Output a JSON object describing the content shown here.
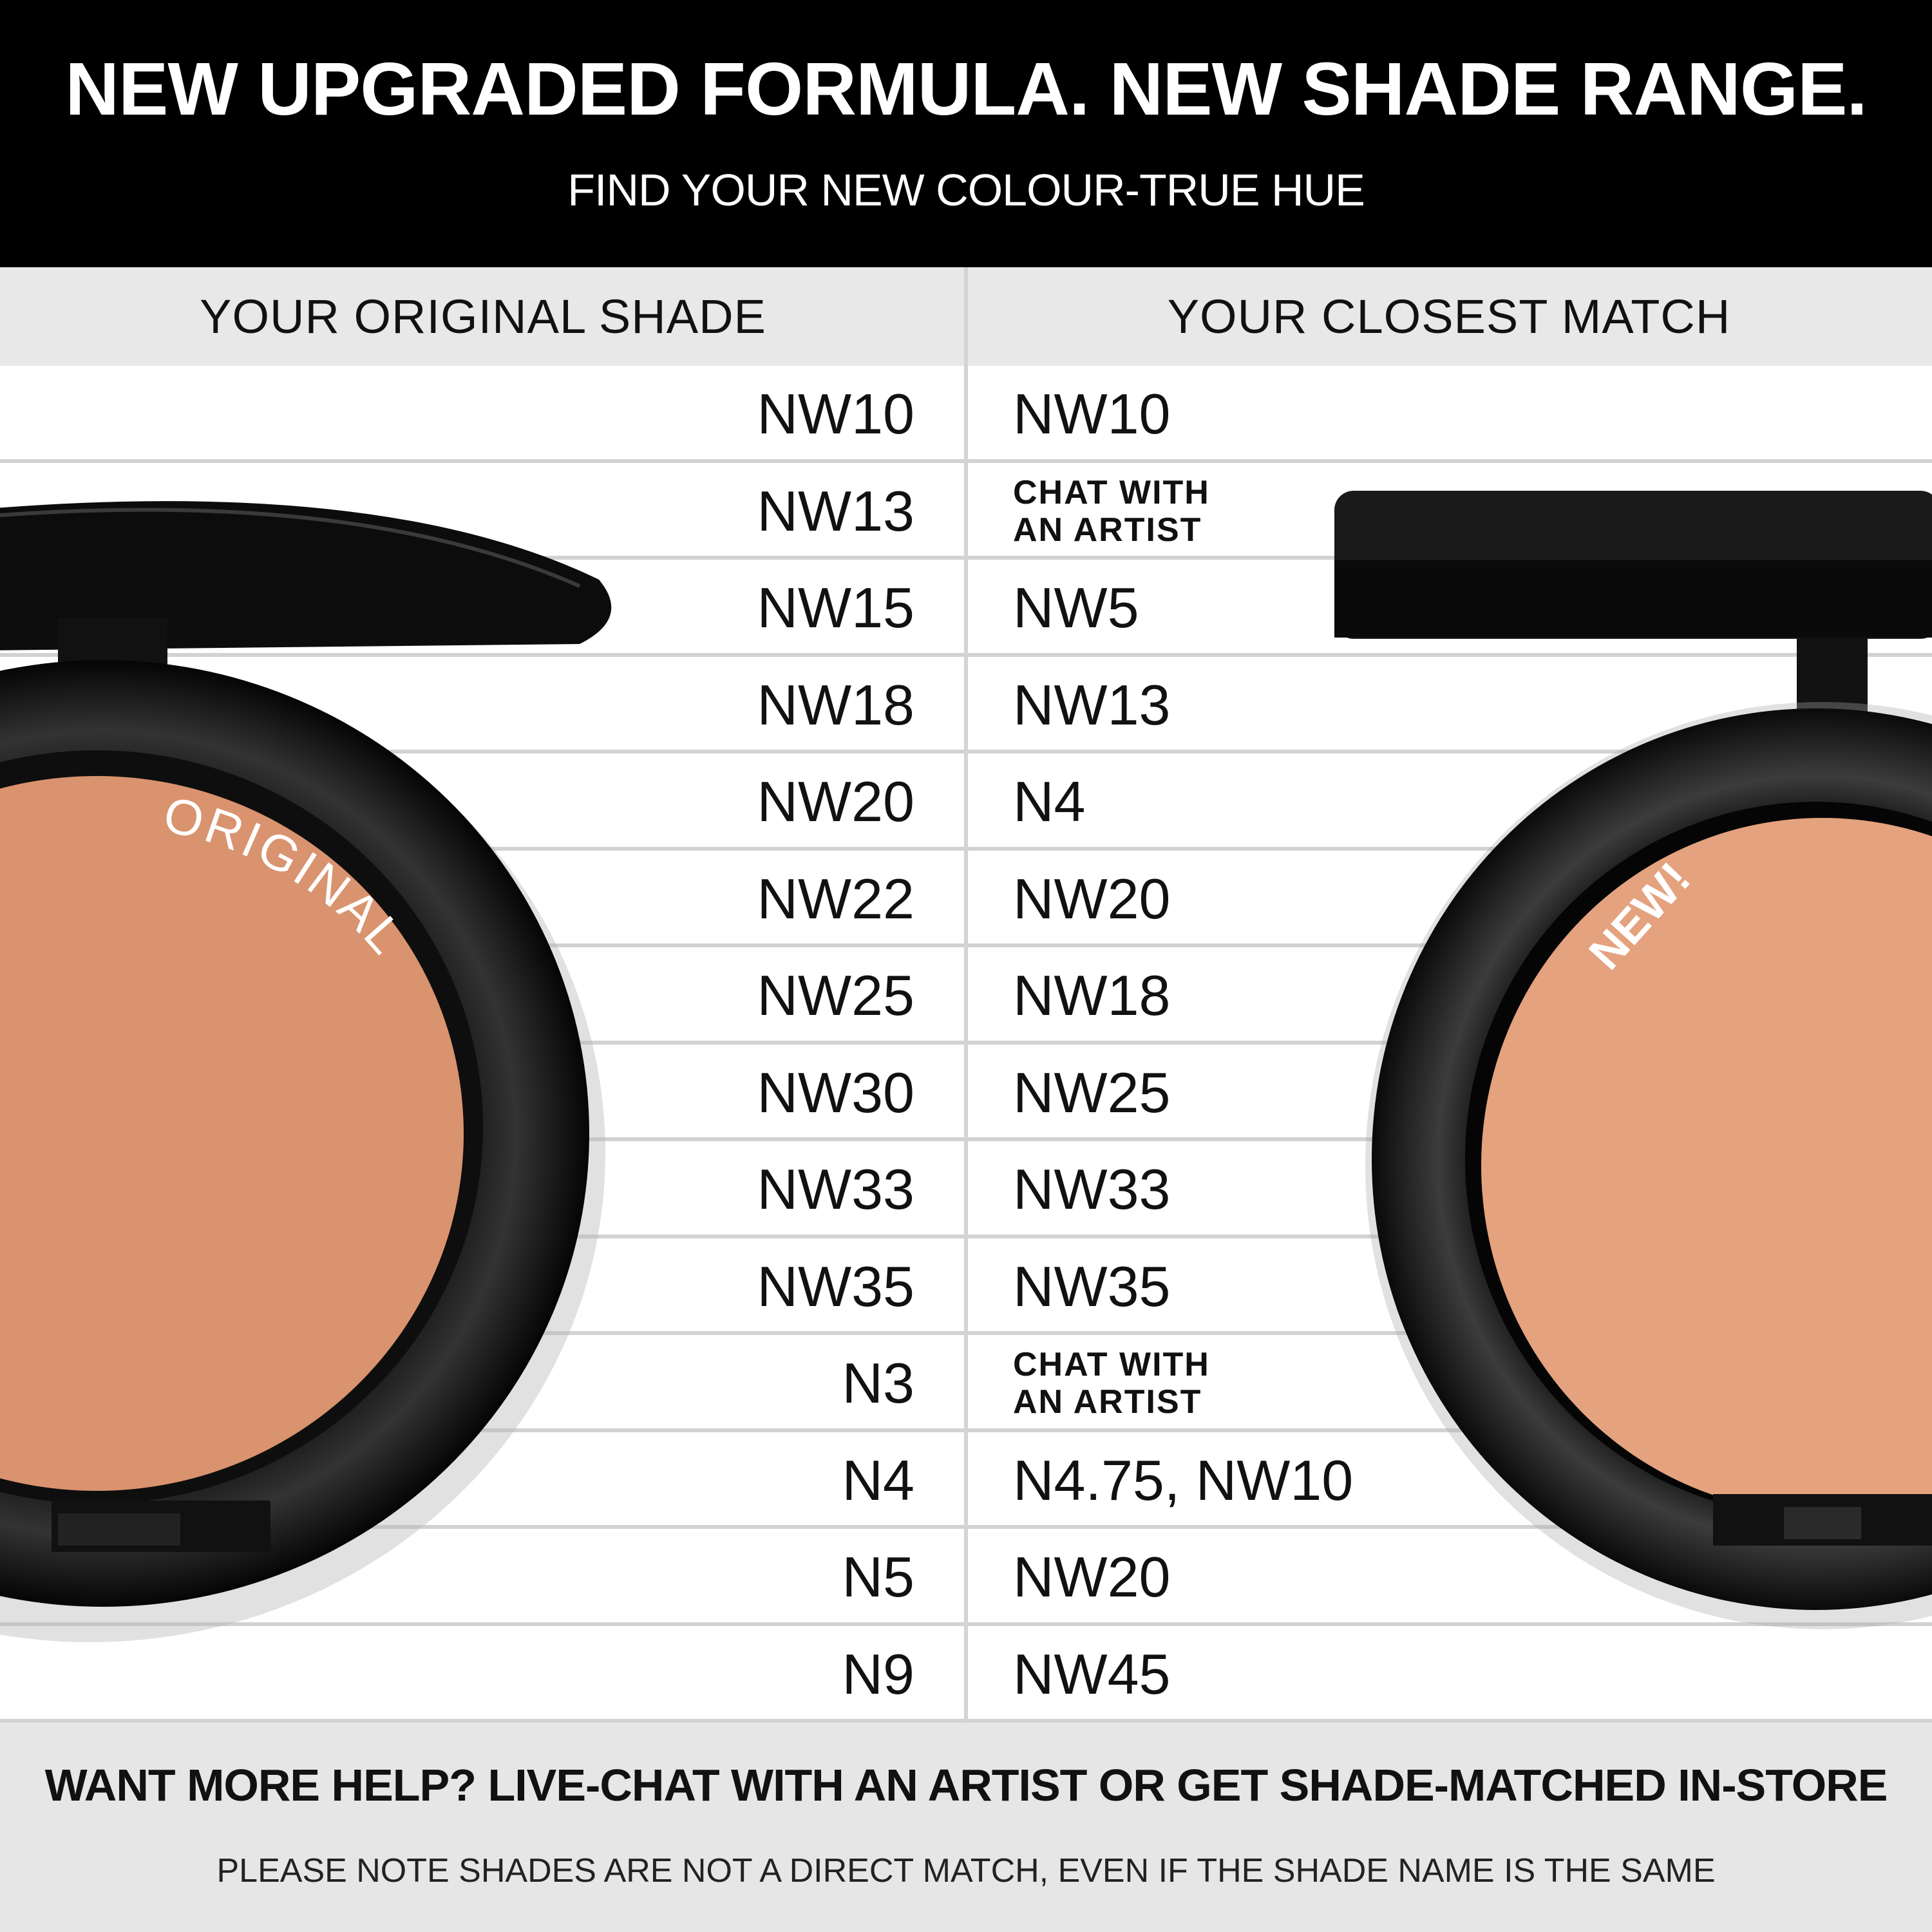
{
  "header": {
    "title": "NEW UPGRADED FORMULA. NEW SHADE RANGE.",
    "subtitle": "FIND YOUR NEW COLOUR-TRUE HUE"
  },
  "columns": {
    "original": "YOUR ORIGINAL SHADE",
    "match": "YOUR CLOSEST MATCH"
  },
  "rows": [
    {
      "original": "NW10",
      "match": "NW10"
    },
    {
      "original": "NW13",
      "match": "CHAT WITH\nAN ARTIST"
    },
    {
      "original": "NW15",
      "match": "NW5"
    },
    {
      "original": "NW18",
      "match": "NW13"
    },
    {
      "original": "NW20",
      "match": "N4"
    },
    {
      "original": "NW22",
      "match": "NW20"
    },
    {
      "original": "NW25",
      "match": "NW18"
    },
    {
      "original": "NW30",
      "match": "NW25"
    },
    {
      "original": "NW33",
      "match": "NW33"
    },
    {
      "original": "NW35",
      "match": "NW35"
    },
    {
      "original": "N3",
      "match": "CHAT WITH\nAN ARTIST"
    },
    {
      "original": "N4",
      "match": "N4.75, NW10"
    },
    {
      "original": "N5",
      "match": "NW20"
    },
    {
      "original": "N9",
      "match": "NW45"
    }
  ],
  "products": {
    "left_label": "ORIGINAL",
    "right_label": "NEW!",
    "left_powder_color": "#d9936f",
    "right_powder_color": "#e4a27e"
  },
  "footer": {
    "help": "WANT MORE HELP? LIVE-CHAT WITH AN ARTIST OR GET SHADE-MATCHED IN-STORE",
    "note": "PLEASE NOTE SHADES ARE NOT A DIRECT MATCH, EVEN IF THE SHADE NAME IS THE SAME"
  }
}
